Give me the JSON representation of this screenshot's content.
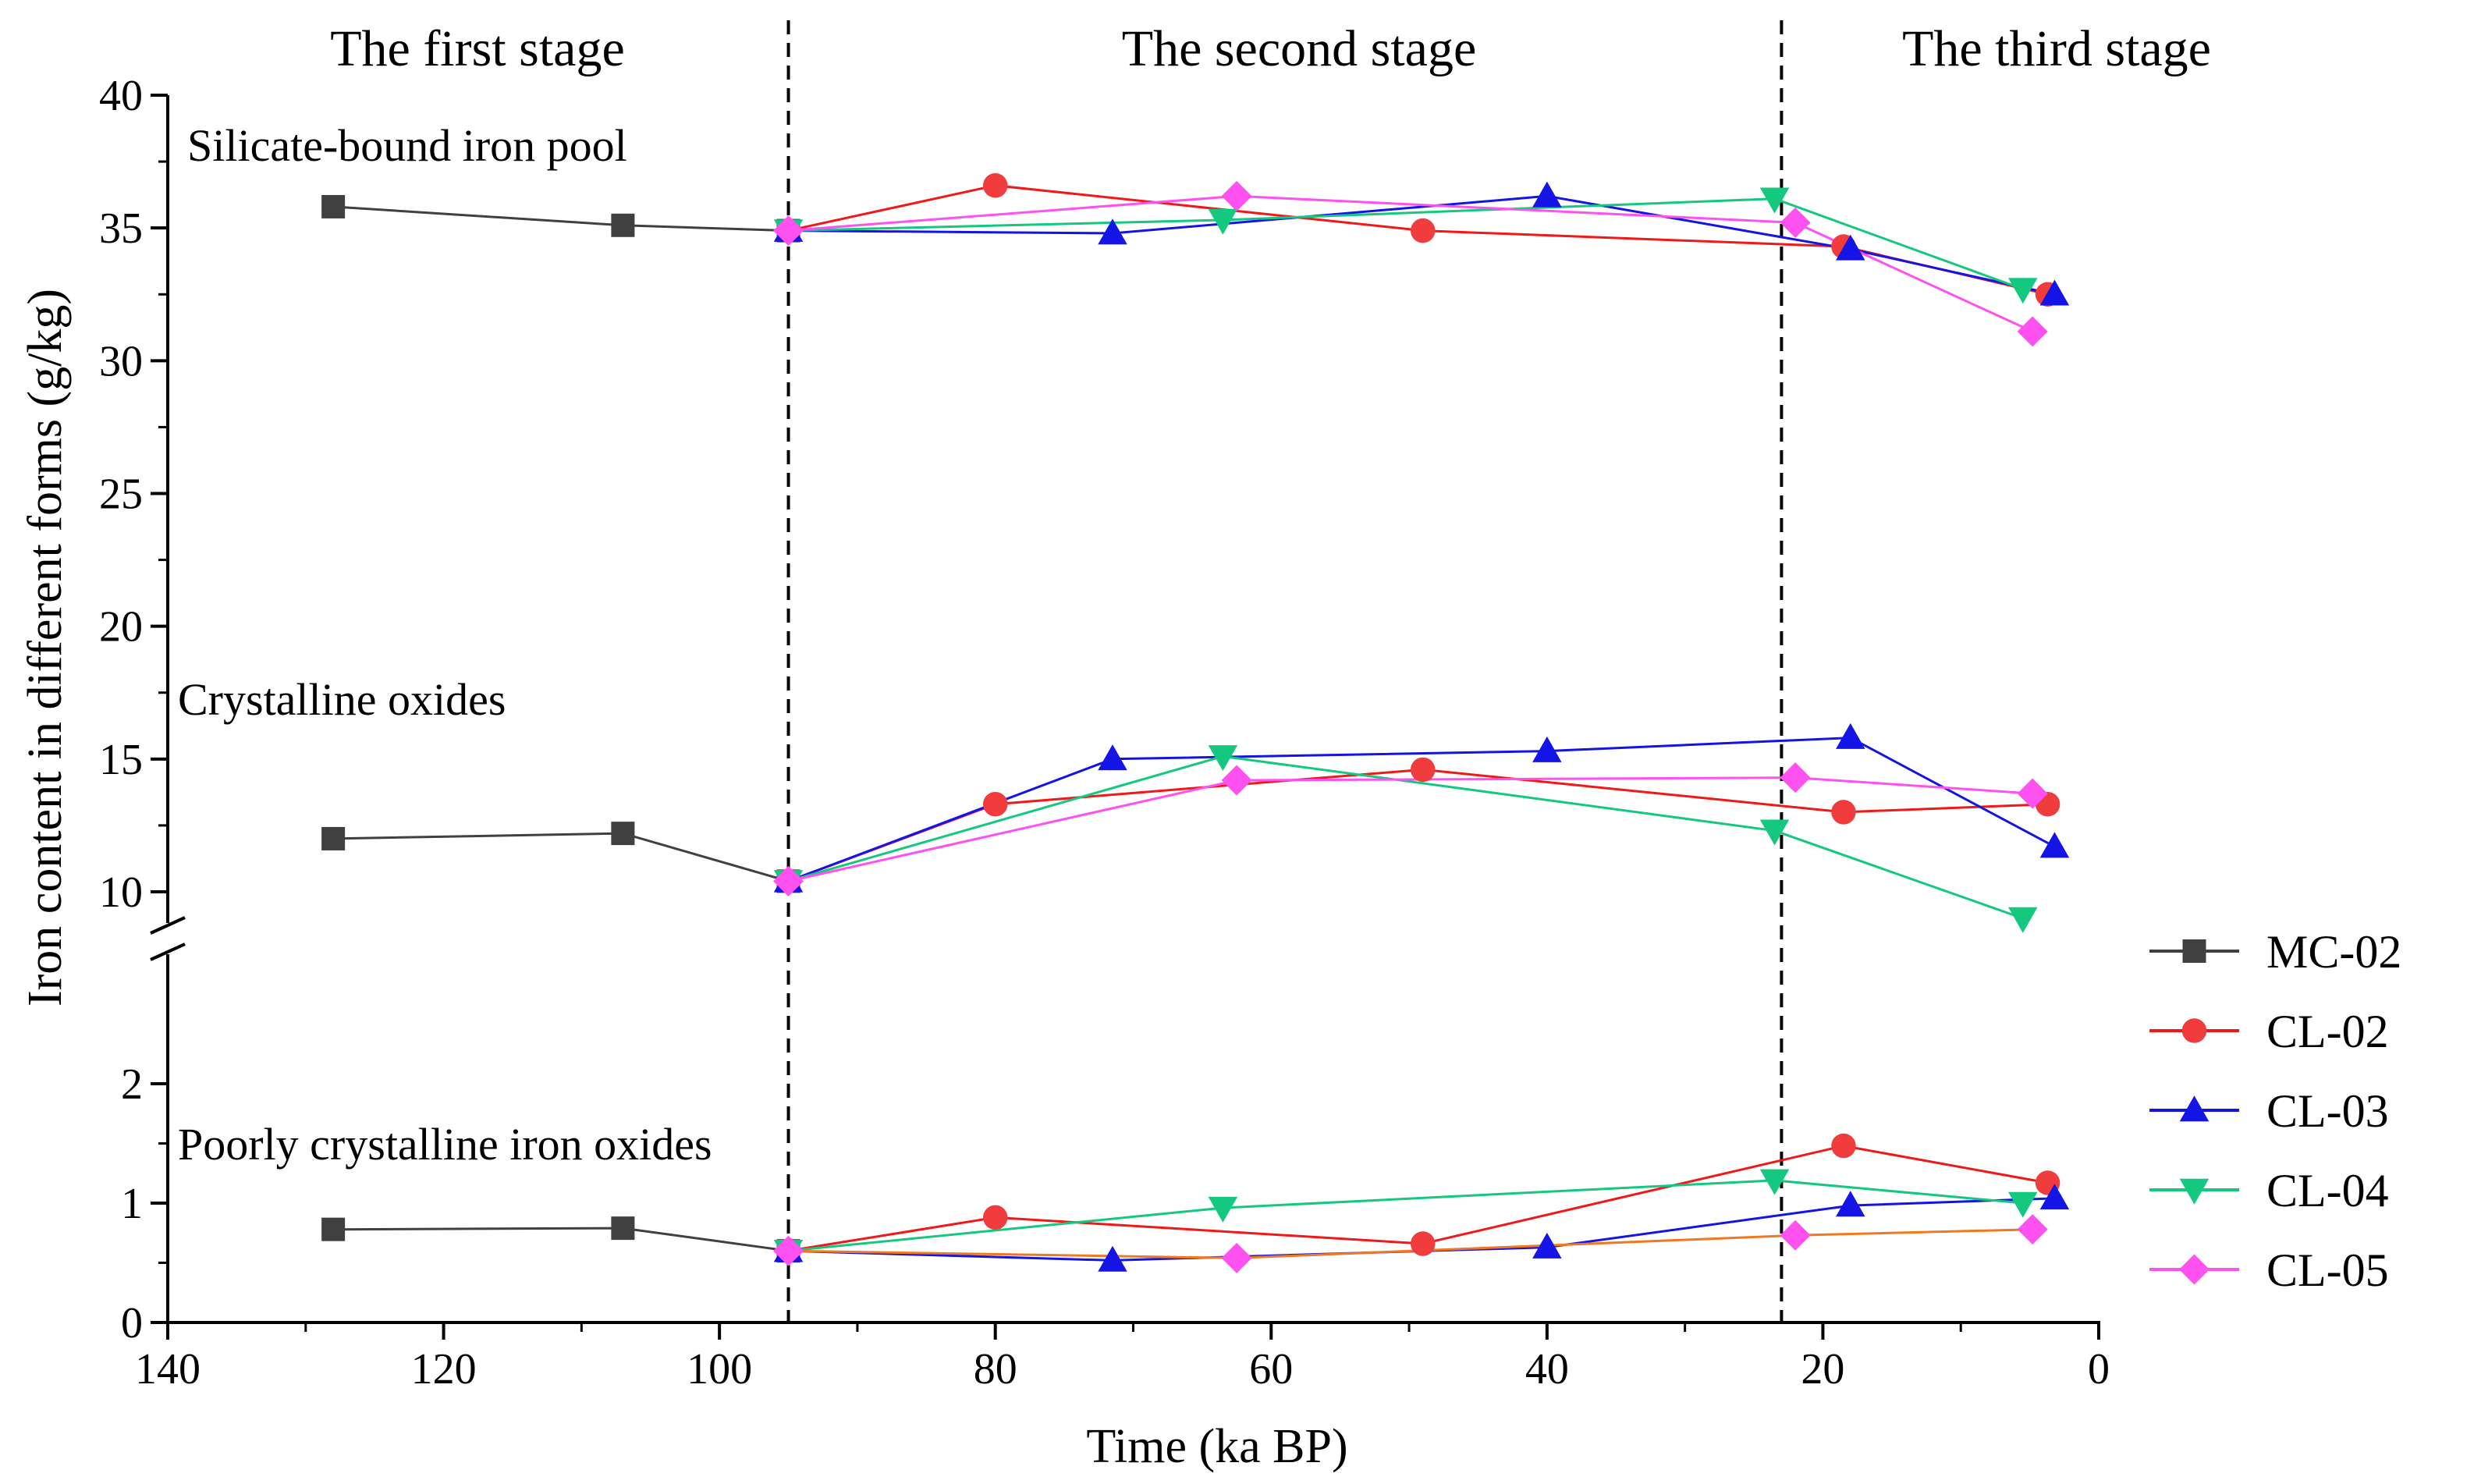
{
  "chart_data": {
    "type": "line",
    "xlabel": "Time (ka BP)",
    "ylabel": "Iron content in different forms (g/kg)",
    "xlim": [
      140,
      0
    ],
    "x_ticks": [
      "140",
      "120",
      "100",
      "80",
      "60",
      "40",
      "20",
      "0"
    ],
    "y_axis_break": "between 2 and 10",
    "y_ticks_upper": [
      "40",
      "35",
      "30",
      "25",
      "20",
      "15",
      "10"
    ],
    "y_ticks_lower": [
      "2",
      "1",
      "0"
    ],
    "stage_labels": [
      "The first stage",
      "The second stage",
      "The third stage"
    ],
    "stage_boundaries": [
      95,
      23
    ],
    "pool_labels": {
      "silicate": "Silicate-bound iron pool",
      "crystalline": "Crystalline oxides",
      "poorly": "Poorly crystalline iron oxides"
    },
    "series": [
      {
        "name": "MC-02",
        "color": "#404040",
        "line_color": "#404040",
        "marker": "square",
        "silicate": [
          [
            128,
            35.8
          ],
          [
            107,
            35.1
          ],
          [
            95,
            34.9
          ]
        ],
        "crystalline": [
          [
            128,
            12.0
          ],
          [
            107,
            12.2
          ],
          [
            95,
            10.4
          ]
        ],
        "poorly": [
          [
            128,
            0.78
          ],
          [
            107,
            0.79
          ],
          [
            95,
            0.6
          ]
        ]
      },
      {
        "name": "CL-02",
        "color": "#f03c3c",
        "line_color": "#f01818",
        "marker": "circle",
        "silicate": [
          [
            95,
            34.9
          ],
          [
            80,
            36.6
          ],
          [
            49,
            34.9
          ],
          [
            18.5,
            34.3
          ],
          [
            3.7,
            32.5
          ]
        ],
        "crystalline": [
          [
            95,
            10.4
          ],
          [
            80,
            13.3
          ],
          [
            49,
            14.6
          ],
          [
            18.5,
            13.0
          ],
          [
            3.7,
            13.3
          ]
        ],
        "poorly": [
          [
            95,
            0.6
          ],
          [
            80,
            0.88
          ],
          [
            49,
            0.66
          ],
          [
            18.5,
            1.48
          ],
          [
            3.7,
            1.17
          ]
        ]
      },
      {
        "name": "CL-03",
        "color": "#1414e6",
        "line_color": "#1414e6",
        "marker": "triangle-up",
        "silicate": [
          [
            95,
            34.9
          ],
          [
            71.5,
            34.8
          ],
          [
            40,
            36.2
          ],
          [
            18,
            34.2
          ],
          [
            3.2,
            32.5
          ]
        ],
        "crystalline": [
          [
            95,
            10.4
          ],
          [
            71.5,
            15.0
          ],
          [
            40,
            15.3
          ],
          [
            18,
            15.8
          ],
          [
            3.2,
            11.7
          ]
        ],
        "poorly": [
          [
            95,
            0.6
          ],
          [
            71.5,
            0.52
          ],
          [
            40,
            0.63
          ],
          [
            18,
            0.98
          ],
          [
            3.2,
            1.04
          ]
        ]
      },
      {
        "name": "CL-04",
        "color": "#14c880",
        "line_color": "#14c880",
        "marker": "triangle-down",
        "silicate": [
          [
            95,
            34.9
          ],
          [
            63.5,
            35.3
          ],
          [
            23.5,
            36.1
          ],
          [
            5.5,
            32.7
          ]
        ],
        "crystalline": [
          [
            95,
            10.4
          ],
          [
            63.5,
            15.1
          ],
          [
            23.5,
            12.3
          ],
          [
            5.5,
            9.0
          ]
        ],
        "poorly": [
          [
            95,
            0.6
          ],
          [
            63.5,
            0.96
          ],
          [
            23.5,
            1.19
          ],
          [
            5.5,
            1.0
          ]
        ]
      },
      {
        "name": "CL-05",
        "color": "#ff50f0",
        "line_color": "#ff50f0",
        "poorly_line_color": "#f07820",
        "marker": "diamond",
        "silicate": [
          [
            95,
            34.9
          ],
          [
            62.5,
            36.2
          ],
          [
            22,
            35.2
          ],
          [
            4.8,
            31.1
          ]
        ],
        "crystalline": [
          [
            95,
            10.4
          ],
          [
            62.5,
            14.2
          ],
          [
            22,
            14.3
          ],
          [
            4.8,
            13.7
          ]
        ],
        "poorly": [
          [
            95,
            0.6
          ],
          [
            62.5,
            0.54
          ],
          [
            22,
            0.73
          ],
          [
            4.8,
            0.78
          ]
        ]
      }
    ]
  }
}
